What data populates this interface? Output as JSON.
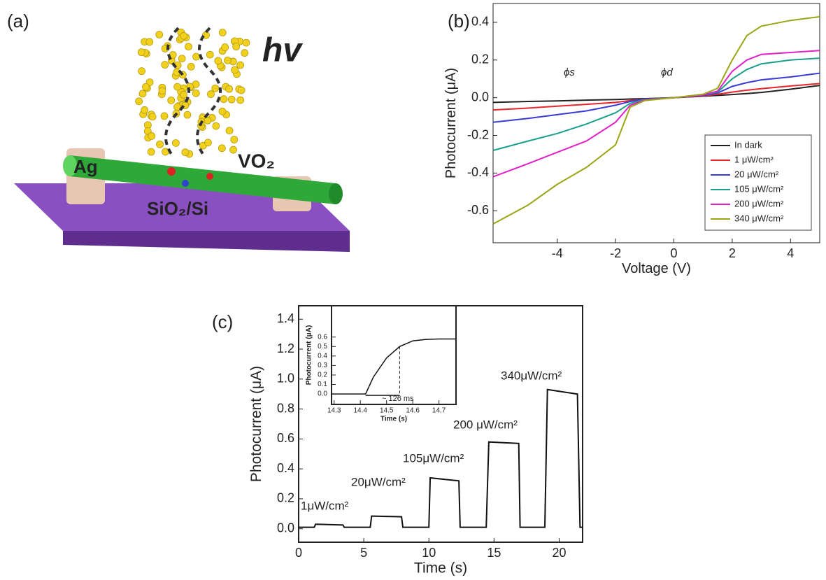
{
  "figure_a": {
    "label": "(a)",
    "texts": [
      "hv",
      "Ag",
      "VO₂",
      "SiO₂/Si"
    ]
  },
  "chart_data": [
    {
      "type": "line",
      "label": "(b)",
      "xlabel": "Voltage (V)",
      "ylabel": "Photocurrent (μA)",
      "xlim": [
        -6.2,
        5
      ],
      "ylim": [
        -0.77,
        0.5
      ],
      "xticks": [
        -4,
        -2,
        0,
        2,
        4
      ],
      "yticks": [
        -0.6,
        -0.4,
        -0.2,
        {
          "value": 0,
          "label": "0.0"
        },
        0.2,
        0.4
      ],
      "grid": false,
      "legend": "lower right",
      "annotations": [
        "ϕs",
        "ϕd"
      ],
      "x": [
        -6.2,
        -5,
        -4,
        -3,
        -2,
        -1.5,
        -1,
        0,
        1,
        1.5,
        2,
        2.5,
        3,
        4,
        5
      ],
      "series": [
        {
          "name": "In dark",
          "color": "#222222",
          "values": [
            -0.025,
            -0.02,
            -0.017,
            -0.013,
            -0.01,
            -0.007,
            -0.005,
            0,
            0.008,
            0.012,
            0.017,
            0.022,
            0.028,
            0.045,
            0.065
          ]
        },
        {
          "name": "1 μW/cm²",
          "color": "#e8252a",
          "values": [
            -0.065,
            -0.055,
            -0.045,
            -0.035,
            -0.025,
            -0.015,
            -0.008,
            0,
            0.01,
            0.018,
            0.03,
            0.04,
            0.048,
            0.062,
            0.075
          ]
        },
        {
          "name": "20 μW/cm²",
          "color": "#3a3ad8",
          "values": [
            -0.13,
            -0.11,
            -0.09,
            -0.07,
            -0.04,
            -0.02,
            -0.008,
            0,
            0.012,
            0.025,
            0.06,
            0.08,
            0.095,
            0.11,
            0.13
          ]
        },
        {
          "name": "105 μW/cm²",
          "color": "#1aa08a",
          "values": [
            -0.28,
            -0.23,
            -0.19,
            -0.14,
            -0.08,
            -0.03,
            -0.01,
            0,
            0.015,
            0.03,
            0.1,
            0.15,
            0.18,
            0.2,
            0.21
          ]
        },
        {
          "name": "200 μW/cm²",
          "color": "#e020c8",
          "values": [
            -0.42,
            -0.35,
            -0.29,
            -0.23,
            -0.13,
            -0.04,
            -0.012,
            0,
            0.015,
            0.035,
            0.14,
            0.2,
            0.23,
            0.24,
            0.25
          ]
        },
        {
          "name": "340 μW/cm²",
          "color": "#9aa514",
          "values": [
            -0.67,
            -0.57,
            -0.46,
            -0.37,
            -0.25,
            -0.05,
            -0.015,
            0,
            0.018,
            0.05,
            0.2,
            0.33,
            0.38,
            0.41,
            0.43
          ]
        }
      ]
    },
    {
      "type": "line",
      "label": "(c)",
      "xlabel": "Time (s)",
      "ylabel": "Photocurrent (μA)",
      "xlim": [
        0,
        21.8
      ],
      "ylim": [
        -0.09,
        1.49
      ],
      "xticks": [
        0,
        5,
        10,
        15,
        20
      ],
      "yticks": [
        {
          "value": 0,
          "label": "0.0"
        },
        0.2,
        0.4,
        0.6,
        0.8,
        {
          "value": 1,
          "label": "1.0"
        },
        1.2,
        1.4
      ],
      "grid": false,
      "color": "#111111",
      "annotations": [
        "1μW/cm²",
        "20μW/cm²",
        "105μW/cm²",
        "200 μW/cm²",
        "340μW/cm²"
      ],
      "x": [
        0,
        1.2,
        1.3,
        3.4,
        3.5,
        5.5,
        5.6,
        7.9,
        8,
        10,
        10.1,
        12.3,
        12.4,
        14.4,
        14.6,
        16.9,
        17,
        18.9,
        19.1,
        21.4,
        21.6,
        21.8
      ],
      "values": [
        0.01,
        0.01,
        0.03,
        0.025,
        0.01,
        0.01,
        0.085,
        0.08,
        0.01,
        0.01,
        0.34,
        0.32,
        0.01,
        0.01,
        0.58,
        0.57,
        0.01,
        0.01,
        0.93,
        0.9,
        0.01,
        0.01
      ]
    },
    {
      "type": "line",
      "xlabel": "Time (s)",
      "ylabel": "Photocurrent (μA)",
      "xlim": [
        14.29,
        14.765
      ],
      "ylim": [
        -0.11,
        0.93
      ],
      "xticks": [
        14.3,
        14.4,
        14.5,
        14.6,
        14.7
      ],
      "yticks": [
        {
          "value": 0,
          "label": "0.0"
        },
        0.1,
        0.2,
        0.3,
        0.4,
        0.5,
        0.6
      ],
      "grid": false,
      "color": "#111111",
      "annotations": [
        "~ 126 ms"
      ],
      "x": [
        14.29,
        14.42,
        14.45,
        14.5,
        14.55,
        14.6,
        14.65,
        14.7,
        14.765
      ],
      "values": [
        0,
        0,
        0.18,
        0.38,
        0.5,
        0.56,
        0.575,
        0.58,
        0.58
      ]
    }
  ]
}
